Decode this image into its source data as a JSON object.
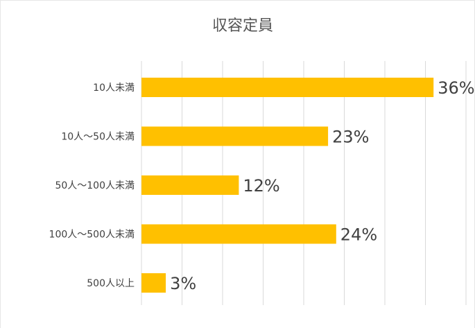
{
  "chart_data": {
    "type": "bar",
    "orientation": "horizontal",
    "title": "収容定員",
    "categories": [
      "10人未満",
      "10人～50人未満",
      "50人～100人未満",
      "100人～500人未満",
      "500人以上"
    ],
    "values": [
      36,
      23,
      12,
      24,
      3
    ],
    "value_labels": [
      "36%",
      "23%",
      "12%",
      "24%",
      "3%"
    ],
    "unit": "%",
    "xlim": [
      0,
      40
    ],
    "grid": true,
    "legend": "none",
    "colors": {
      "bar": "#FFC000",
      "grid": "#D9D9D9",
      "text": "#404040"
    }
  }
}
